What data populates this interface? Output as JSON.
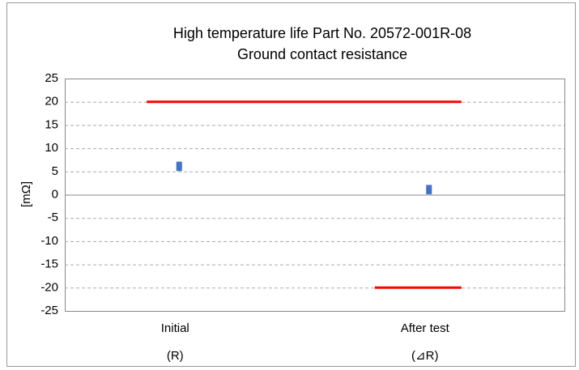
{
  "chart_data": {
    "type": "scatter",
    "title": [
      "High temperature life Part No. 20572-001R-08",
      "Ground contact resistance"
    ],
    "y_label": "[mΩ]",
    "categories": [
      "Initial",
      "After test"
    ],
    "category_sublabels": [
      "(R)",
      "(⊿R)"
    ],
    "series": [
      {
        "color": "#4472c4",
        "values": [
          6.5,
          1.5
        ]
      },
      {
        "color": "#4472c4",
        "values": [
          5.7,
          0.7
        ]
      }
    ],
    "limits": [
      {
        "color": "#ff0000",
        "values": [
          20,
          20
        ]
      },
      {
        "color": "#ff0000",
        "values": [
          null,
          -20
        ]
      }
    ],
    "ylim": [
      -25,
      25
    ],
    "yticks": [
      -25,
      -20,
      -15,
      -10,
      -5,
      0,
      5,
      10,
      15,
      20,
      25
    ],
    "grid": true
  }
}
